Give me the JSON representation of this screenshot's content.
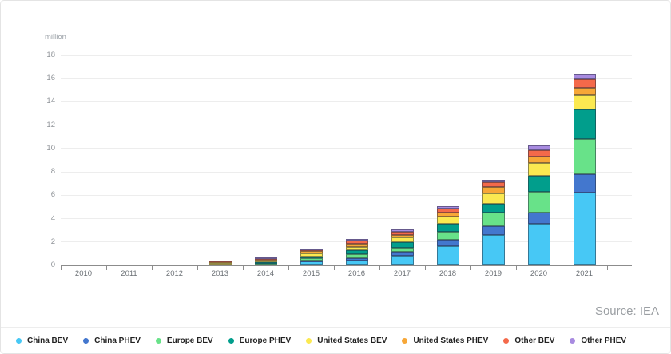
{
  "chart": {
    "unit_label": "million",
    "source": "Source: IEA",
    "y_ticks": [
      "0",
      "2",
      "4",
      "6",
      "8",
      "10",
      "12",
      "14",
      "16",
      "18"
    ]
  },
  "chart_data": {
    "type": "bar",
    "stacked": true,
    "title": "",
    "xlabel": "",
    "ylabel": "million",
    "ylim": [
      0,
      18
    ],
    "ytick_step": 2,
    "grid": true,
    "legend_position": "bottom",
    "categories": [
      "2010",
      "2011",
      "2012",
      "2013",
      "2014",
      "2015",
      "2016",
      "2017",
      "2018",
      "2019",
      "2020",
      "2021"
    ],
    "series": [
      {
        "name": "China BEV",
        "color": "#47C8F5",
        "values": [
          0,
          0.01,
          0.015,
          0.03,
          0.08,
          0.3,
          0.4,
          0.8,
          1.6,
          2.55,
          3.5,
          6.2
        ]
      },
      {
        "name": "China PHEV",
        "color": "#4377CE",
        "values": [
          0,
          0,
          0.005,
          0.01,
          0.02,
          0.1,
          0.2,
          0.3,
          0.55,
          0.8,
          0.95,
          1.6
        ]
      },
      {
        "name": "Europe BEV",
        "color": "#68E289",
        "values": [
          0,
          0.01,
          0.015,
          0.05,
          0.09,
          0.19,
          0.3,
          0.4,
          0.7,
          1.1,
          1.8,
          2.95
        ]
      },
      {
        "name": "Europe PHEV",
        "color": "#019E8C",
        "values": [
          0,
          0,
          0.01,
          0.03,
          0.07,
          0.15,
          0.35,
          0.45,
          0.65,
          0.8,
          1.4,
          2.55
        ]
      },
      {
        "name": "United States BEV",
        "color": "#FBE951",
        "values": [
          0.005,
          0.01,
          0.025,
          0.08,
          0.14,
          0.25,
          0.3,
          0.4,
          0.65,
          0.9,
          1.1,
          1.25
        ]
      },
      {
        "name": "United States PHEV",
        "color": "#F7A737",
        "values": [
          0.005,
          0.01,
          0.03,
          0.09,
          0.13,
          0.21,
          0.27,
          0.25,
          0.35,
          0.5,
          0.5,
          0.6
        ]
      },
      {
        "name": "Other BEV",
        "color": "#F4694A",
        "values": [
          0,
          0.005,
          0.01,
          0.06,
          0.08,
          0.15,
          0.25,
          0.25,
          0.3,
          0.4,
          0.6,
          0.75
        ]
      },
      {
        "name": "Other PHEV",
        "color": "#A88BE0",
        "values": [
          0,
          0,
          0.005,
          0.03,
          0.04,
          0.08,
          0.13,
          0.2,
          0.2,
          0.25,
          0.35,
          0.45
        ]
      }
    ],
    "totals": [
      0.01,
      0.045,
      0.115,
      0.38,
      0.65,
      1.43,
      2.2,
      3.05,
      5.0,
      7.3,
      10.2,
      16.35
    ]
  },
  "legend": {
    "items": [
      {
        "label": "China BEV",
        "color": "#47C8F5"
      },
      {
        "label": "China PHEV",
        "color": "#4377CE"
      },
      {
        "label": "Europe BEV",
        "color": "#68E289"
      },
      {
        "label": "Europe PHEV",
        "color": "#019E8C"
      },
      {
        "label": "United States BEV",
        "color": "#FBE951"
      },
      {
        "label": "United States PHEV",
        "color": "#F7A737"
      },
      {
        "label": "Other BEV",
        "color": "#F4694A"
      },
      {
        "label": "Other PHEV",
        "color": "#A88BE0"
      }
    ]
  }
}
